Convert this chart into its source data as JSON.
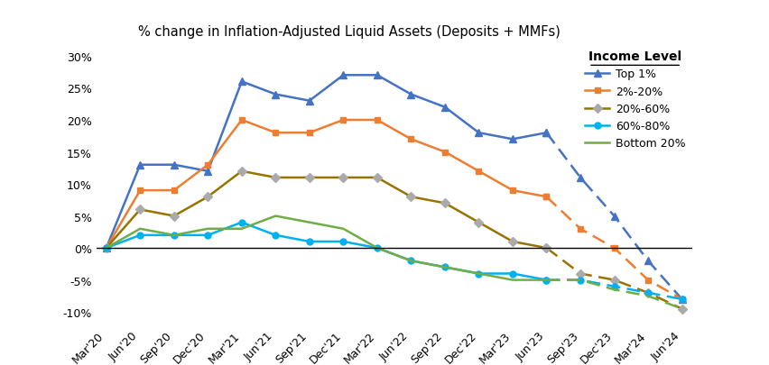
{
  "title": "% change in Inflation-Adjusted Liquid Assets (Deposits + MMFs)",
  "x_labels": [
    "Mar'20",
    "Jun'20",
    "Sep'20",
    "Dec'20",
    "Mar'21",
    "Jun'21",
    "Sep'21",
    "Dec'21",
    "Mar'22",
    "Jun'22",
    "Sep'22",
    "Dec'22",
    "Mar'23",
    "Jun'23",
    "Sep'23",
    "Dec'23",
    "Mar'24",
    "Jun'24"
  ],
  "series": [
    {
      "label": "Top 1%",
      "color": "#4472C4",
      "marker": "^",
      "markercolor": "#4472C4",
      "solid_values": [
        0,
        13,
        13,
        12,
        26,
        24,
        23,
        27,
        27,
        24,
        22,
        18,
        17,
        18
      ],
      "dashed_values": [
        18,
        11,
        5,
        -2,
        -8
      ]
    },
    {
      "label": "2%-20%",
      "color": "#ED7D31",
      "marker": "s",
      "markercolor": "#ED7D31",
      "solid_values": [
        0,
        9,
        9,
        13,
        20,
        18,
        18,
        20,
        20,
        17,
        15,
        12,
        9,
        8
      ],
      "dashed_values": [
        8,
        3,
        0,
        -5,
        -8
      ]
    },
    {
      "label": "20%-60%",
      "color": "#997300",
      "marker": "D",
      "markercolor": "#AAAAAA",
      "solid_values": [
        0,
        6,
        5,
        8,
        12,
        11,
        11,
        11,
        11,
        8,
        7,
        4,
        1,
        0
      ],
      "dashed_values": [
        0,
        -4,
        -5,
        -7,
        -9.5
      ]
    },
    {
      "label": "60%-80%",
      "color": "#00B0F0",
      "marker": "o",
      "markercolor": "#00B0F0",
      "solid_values": [
        0,
        2,
        2,
        2,
        4,
        2,
        1,
        1,
        0,
        -2,
        -3,
        -4,
        -4,
        -5
      ],
      "dashed_values": [
        -5,
        -5,
        -6,
        -7,
        -8
      ]
    },
    {
      "label": "Bottom 20%",
      "color": "#70AD47",
      "marker": null,
      "markercolor": "#70AD47",
      "solid_values": [
        0,
        3,
        2,
        3,
        3,
        5,
        4,
        3,
        0,
        -2,
        -3,
        -4,
        -5,
        -5
      ],
      "dashed_values": [
        -5,
        -5,
        -6.5,
        -7.5,
        -9.5
      ]
    }
  ],
  "solid_x_indices": [
    0,
    1,
    2,
    3,
    4,
    5,
    6,
    7,
    8,
    9,
    10,
    11,
    12,
    13
  ],
  "dashed_x_indices": [
    13,
    14,
    15,
    16,
    17
  ],
  "ylim": [
    -12,
    32
  ],
  "yticks": [
    -10,
    -5,
    0,
    5,
    10,
    15,
    20,
    25,
    30
  ],
  "legend_title": "Income Level",
  "background_color": "#FFFFFF"
}
